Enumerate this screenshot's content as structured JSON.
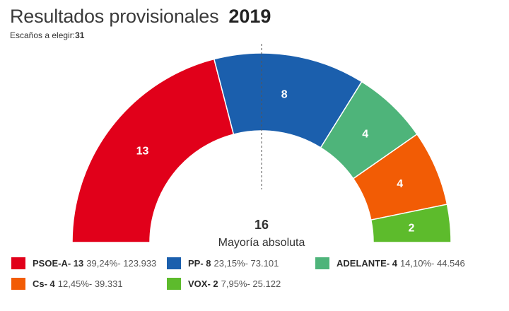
{
  "header": {
    "title": "Resultados provisionales",
    "year": "2019",
    "seats_label": "Escaños a elegir:",
    "seats_total": "31"
  },
  "chart_data": {
    "type": "pie",
    "subtype": "parliament-half-donut",
    "total_seats": 31,
    "majority_label_value": "16",
    "majority_label_text": "Mayoría absoluta",
    "series": [
      {
        "name": "PSOE-A",
        "seats": 13,
        "percent": "39,24%",
        "votes": "123.933",
        "color": "#e1001a"
      },
      {
        "name": "PP",
        "seats": 8,
        "percent": "23,15%",
        "votes": "73.101",
        "color": "#1b5fad"
      },
      {
        "name": "ADELANTE",
        "seats": 4,
        "percent": "14,10%",
        "votes": "44.546",
        "color": "#4eb47a"
      },
      {
        "name": "Cs",
        "seats": 4,
        "percent": "12,45%",
        "votes": "39.331",
        "color": "#f25c05"
      },
      {
        "name": "VOX",
        "seats": 2,
        "percent": "7,95%",
        "votes": "25.122",
        "color": "#5dbb2c"
      }
    ]
  },
  "legend": [
    {
      "label": "PSOE-A- 13",
      "detail": "39,24%- 123.933",
      "color": "#e1001a"
    },
    {
      "label": "PP- 8",
      "detail": "23,15%- 73.101",
      "color": "#1b5fad"
    },
    {
      "label": "ADELANTE- 4",
      "detail": "14,10%- 44.546",
      "color": "#4eb47a"
    },
    {
      "label": "Cs- 4",
      "detail": "12,45%- 39.331",
      "color": "#f25c05"
    },
    {
      "label": "VOX- 2",
      "detail": "7,95%- 25.122",
      "color": "#5dbb2c"
    }
  ]
}
